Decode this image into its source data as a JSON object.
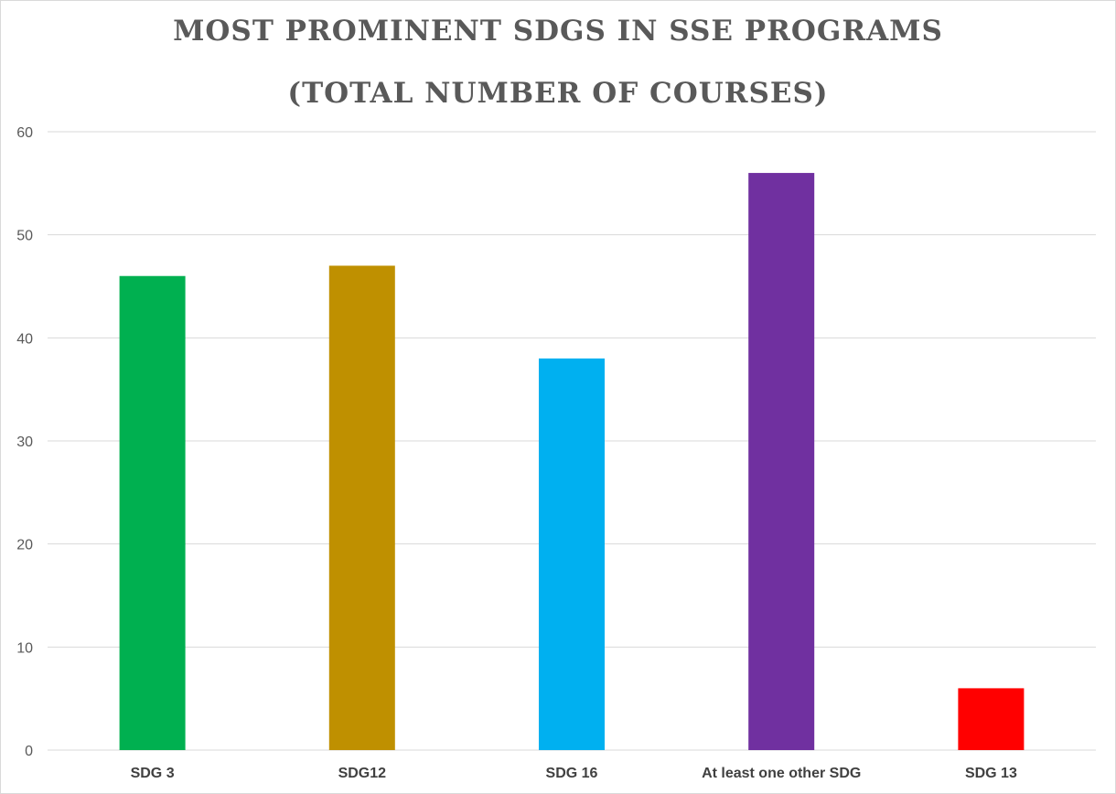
{
  "chart_data": {
    "type": "bar",
    "title": "MOST PROMINENT SDGS IN SSE PROGRAMS",
    "subtitle": "(TOTAL NUMBER OF COURSES)",
    "categories": [
      "SDG 3",
      "SDG12",
      "SDG 16",
      "At least one other SDG",
      "SDG 13"
    ],
    "values": [
      46,
      47,
      38,
      56,
      6
    ],
    "colors": [
      "#00b050",
      "#bf9000",
      "#00b0f0",
      "#7030a0",
      "#ff0000"
    ],
    "ylim": [
      0,
      60
    ],
    "yticks": [
      0,
      10,
      20,
      30,
      40,
      50,
      60
    ],
    "grid": true,
    "legend": "none",
    "xlabel": "",
    "ylabel": ""
  }
}
